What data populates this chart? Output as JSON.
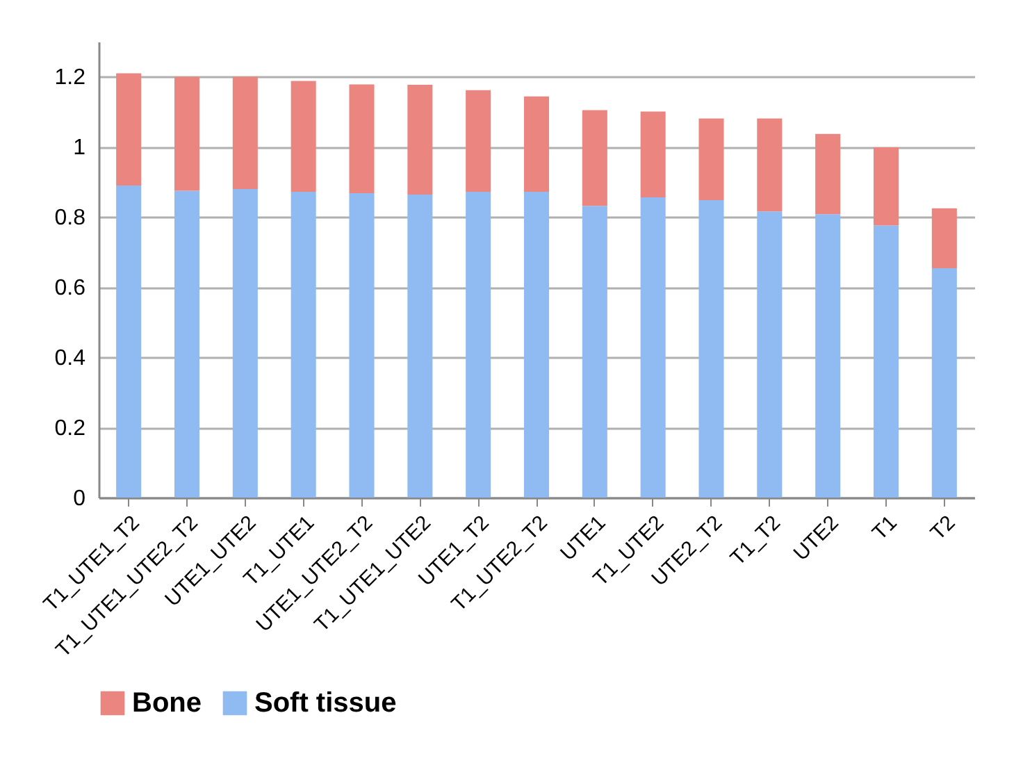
{
  "chart_data": {
    "type": "bar",
    "stacked": true,
    "categories": [
      "T1_UTE1_T2",
      "T1_UTE1_UTE2_T2",
      "UTE1_UTE2",
      "T1_UTE1",
      "UTE1_UTE2_T2",
      "T1_UTE1_UTE2",
      "UTE1_T2",
      "T1_UTE2_T2",
      "UTE1",
      "T1_UTE2",
      "UTE2_T2",
      "T1_T2",
      "UTE2",
      "T1",
      "T2"
    ],
    "series": [
      {
        "name": "Soft tissue",
        "color": "#8fbbf2",
        "values": [
          0.89,
          0.875,
          0.88,
          0.872,
          0.868,
          0.864,
          0.872,
          0.872,
          0.832,
          0.856,
          0.848,
          0.816,
          0.808,
          0.776,
          0.654
        ]
      },
      {
        "name": "Bone",
        "color": "#ea8580",
        "values": [
          0.32,
          0.325,
          0.32,
          0.316,
          0.31,
          0.313,
          0.29,
          0.272,
          0.273,
          0.245,
          0.233,
          0.265,
          0.229,
          0.223,
          0.171
        ]
      }
    ],
    "ylim": [
      0,
      1.3
    ],
    "yticks": [
      0,
      0.2,
      0.4,
      0.6,
      0.8,
      1,
      1.2
    ],
    "grid": "y",
    "legend": "bottom"
  }
}
